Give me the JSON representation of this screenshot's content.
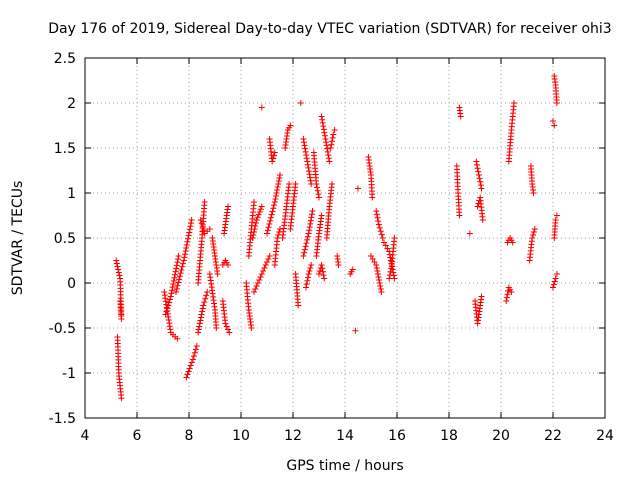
{
  "chart_data": {
    "type": "scatter",
    "title": "Day 176 of 2019, Sidereal Day-to-day VTEC variation (SDTVAR) for receiver ohi3",
    "xlabel": "GPS time / hours",
    "ylabel": "SDTVAR / TECUs",
    "xlim": [
      4,
      24
    ],
    "ylim": [
      -1.5,
      2.5
    ],
    "xticks": [
      4,
      6,
      8,
      10,
      12,
      14,
      16,
      18,
      20,
      22,
      24
    ],
    "yticks": [
      -1.5,
      -1,
      -0.5,
      0,
      0.5,
      1,
      1.5,
      2,
      2.5
    ],
    "xtick_labels": [
      "4",
      "6",
      "8",
      "10",
      "12",
      "14",
      "16",
      "18",
      "20",
      "22",
      "24"
    ],
    "ytick_labels": [
      "-1.5",
      "-1",
      "-0.5",
      "0",
      "0.5",
      "1",
      "1.5",
      "2",
      "2.5"
    ],
    "grid": true,
    "marker": "+",
    "color": "#ff0000",
    "series": [
      {
        "name": "SDTVAR",
        "segments": [
          [
            [
              5.2,
              0.25
            ],
            [
              5.35,
              0.05
            ],
            [
              5.4,
              -0.35
            ]
          ],
          [
            [
              5.25,
              -0.6
            ],
            [
              5.3,
              -1.0
            ],
            [
              5.4,
              -1.28
            ]
          ],
          [
            [
              5.35,
              -0.2
            ],
            [
              5.4,
              -0.4
            ]
          ],
          [
            [
              7.05,
              -0.1
            ],
            [
              7.3,
              -0.55
            ],
            [
              7.55,
              -0.62
            ]
          ],
          [
            [
              7.1,
              -0.35
            ],
            [
              7.3,
              -0.15
            ],
            [
              7.6,
              0.3
            ]
          ],
          [
            [
              7.5,
              -0.1
            ],
            [
              7.8,
              0.25
            ],
            [
              8.1,
              0.7
            ]
          ],
          [
            [
              7.9,
              -1.05
            ],
            [
              8.15,
              -0.85
            ],
            [
              8.3,
              -0.7
            ]
          ],
          [
            [
              8.35,
              -0.55
            ],
            [
              8.55,
              -0.25
            ],
            [
              8.7,
              -0.1
            ]
          ],
          [
            [
              8.35,
              0.0
            ],
            [
              8.5,
              0.5
            ],
            [
              8.6,
              0.9
            ]
          ],
          [
            [
              8.45,
              0.7
            ],
            [
              8.6,
              0.55
            ],
            [
              8.8,
              0.6
            ]
          ],
          [
            [
              8.8,
              0.1
            ],
            [
              9.0,
              -0.3
            ],
            [
              9.05,
              -0.5
            ]
          ],
          [
            [
              8.9,
              0.5
            ],
            [
              9.0,
              0.3
            ],
            [
              9.1,
              0.1
            ]
          ],
          [
            [
              9.3,
              -0.2
            ],
            [
              9.4,
              -0.45
            ],
            [
              9.55,
              -0.55
            ]
          ],
          [
            [
              9.35,
              0.55
            ],
            [
              9.45,
              0.75
            ],
            [
              9.5,
              0.85
            ]
          ],
          [
            [
              9.3,
              0.2
            ],
            [
              9.4,
              0.25
            ],
            [
              9.5,
              0.2
            ]
          ],
          [
            [
              10.2,
              0.0
            ],
            [
              10.3,
              -0.3
            ],
            [
              10.4,
              -0.5
            ]
          ],
          [
            [
              10.3,
              0.3
            ],
            [
              10.4,
              0.6
            ],
            [
              10.5,
              0.9
            ]
          ],
          [
            [
              10.45,
              0.5
            ],
            [
              10.6,
              0.7
            ],
            [
              10.8,
              0.85
            ]
          ],
          [
            [
              10.5,
              -0.1
            ],
            [
              10.8,
              0.1
            ],
            [
              11.1,
              0.3
            ]
          ],
          [
            [
              10.8,
              1.95
            ]
          ],
          [
            [
              11.0,
              0.55
            ],
            [
              11.3,
              0.9
            ],
            [
              11.5,
              1.2
            ]
          ],
          [
            [
              11.1,
              1.6
            ],
            [
              11.2,
              1.35
            ],
            [
              11.3,
              1.45
            ]
          ],
          [
            [
              11.3,
              0.2
            ],
            [
              11.4,
              0.5
            ],
            [
              11.5,
              0.6
            ]
          ],
          [
            [
              11.6,
              0.5
            ],
            [
              11.75,
              0.85
            ],
            [
              11.85,
              1.1
            ]
          ],
          [
            [
              11.7,
              1.5
            ],
            [
              11.8,
              1.7
            ],
            [
              11.9,
              1.75
            ]
          ],
          [
            [
              11.9,
              0.6
            ],
            [
              12.0,
              0.85
            ],
            [
              12.1,
              1.1
            ]
          ],
          [
            [
              12.1,
              0.1
            ],
            [
              12.2,
              -0.25
            ]
          ],
          [
            [
              12.3,
              2.0
            ]
          ],
          [
            [
              12.4,
              1.6
            ],
            [
              12.55,
              1.35
            ],
            [
              12.7,
              1.1
            ]
          ],
          [
            [
              12.4,
              0.3
            ],
            [
              12.6,
              0.55
            ],
            [
              12.75,
              0.8
            ]
          ],
          [
            [
              12.5,
              -0.05
            ],
            [
              12.6,
              0.1
            ],
            [
              12.7,
              0.2
            ]
          ],
          [
            [
              12.8,
              1.45
            ],
            [
              12.9,
              1.1
            ],
            [
              13.0,
              0.95
            ]
          ],
          [
            [
              12.9,
              0.3
            ],
            [
              13.0,
              0.55
            ],
            [
              13.1,
              0.75
            ]
          ],
          [
            [
              13.1,
              1.85
            ],
            [
              13.25,
              1.6
            ],
            [
              13.4,
              1.35
            ]
          ],
          [
            [
              13.0,
              0.1
            ],
            [
              13.1,
              0.2
            ],
            [
              13.2,
              0.05
            ]
          ],
          [
            [
              13.3,
              0.5
            ],
            [
              13.4,
              0.85
            ],
            [
              13.5,
              1.1
            ]
          ],
          [
            [
              13.45,
              1.5
            ],
            [
              13.55,
              1.65
            ],
            [
              13.6,
              1.7
            ]
          ],
          [
            [
              13.7,
              0.3
            ],
            [
              13.75,
              0.2
            ]
          ],
          [
            [
              14.2,
              0.1
            ],
            [
              14.3,
              0.15
            ]
          ],
          [
            [
              14.4,
              -0.53
            ]
          ],
          [
            [
              14.5,
              1.05
            ]
          ],
          [
            [
              14.9,
              1.4
            ],
            [
              15.0,
              1.2
            ],
            [
              15.05,
              0.95
            ]
          ],
          [
            [
              15.0,
              0.3
            ],
            [
              15.2,
              0.2
            ],
            [
              15.4,
              -0.1
            ]
          ],
          [
            [
              15.2,
              0.8
            ],
            [
              15.3,
              0.65
            ],
            [
              15.45,
              0.5
            ]
          ],
          [
            [
              15.5,
              0.45
            ],
            [
              15.7,
              0.35
            ],
            [
              15.9,
              0.05
            ]
          ],
          [
            [
              15.7,
              0.05
            ],
            [
              15.8,
              0.2
            ],
            [
              15.9,
              0.5
            ]
          ],
          [
            [
              18.3,
              1.3
            ],
            [
              18.35,
              1.0
            ],
            [
              18.4,
              0.75
            ]
          ],
          [
            [
              18.4,
              1.95
            ],
            [
              18.45,
              1.85
            ]
          ],
          [
            [
              18.8,
              0.55
            ]
          ],
          [
            [
              19.0,
              -0.2
            ],
            [
              19.1,
              -0.45
            ],
            [
              19.25,
              -0.15
            ]
          ],
          [
            [
              19.05,
              1.35
            ],
            [
              19.15,
              1.2
            ],
            [
              19.25,
              1.05
            ]
          ],
          [
            [
              19.1,
              0.85
            ],
            [
              19.2,
              0.95
            ],
            [
              19.3,
              0.7
            ]
          ],
          [
            [
              20.2,
              -0.2
            ],
            [
              20.3,
              -0.05
            ],
            [
              20.4,
              -0.1
            ]
          ],
          [
            [
              20.25,
              0.45
            ],
            [
              20.35,
              0.5
            ],
            [
              20.45,
              0.45
            ]
          ],
          [
            [
              20.3,
              1.35
            ],
            [
              20.4,
              1.7
            ],
            [
              20.5,
              2.0
            ]
          ],
          [
            [
              21.1,
              0.25
            ],
            [
              21.2,
              0.5
            ],
            [
              21.3,
              0.6
            ]
          ],
          [
            [
              21.15,
              1.3
            ],
            [
              21.2,
              1.1
            ],
            [
              21.25,
              1.0
            ]
          ],
          [
            [
              22.0,
              -0.05
            ],
            [
              22.1,
              0.05
            ],
            [
              22.15,
              0.1
            ]
          ],
          [
            [
              22.05,
              0.5
            ],
            [
              22.1,
              0.7
            ],
            [
              22.15,
              0.75
            ]
          ],
          [
            [
              22.05,
              2.3
            ],
            [
              22.1,
              2.2
            ],
            [
              22.15,
              2.0
            ]
          ],
          [
            [
              22.0,
              1.8
            ],
            [
              22.05,
              1.75
            ]
          ]
        ]
      }
    ]
  }
}
